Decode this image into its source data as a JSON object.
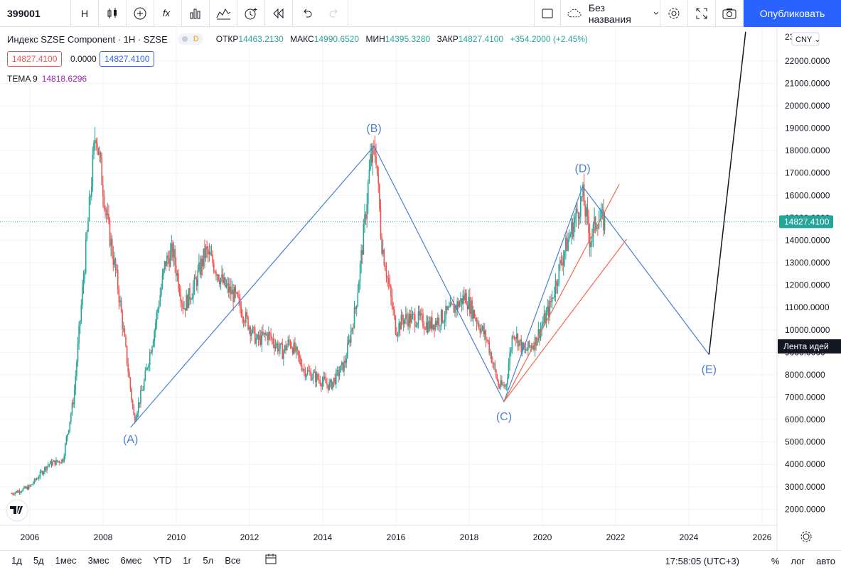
{
  "toolbar": {
    "symbol": "399001",
    "interval": "H",
    "icons": [
      "candles-icon",
      "add-indicator-icon",
      "fx-icon",
      "bars-chart-icon",
      "line-chart-icon",
      "alert-icon",
      "replay-icon",
      "undo-icon",
      "redo-icon"
    ],
    "layout_name": "Без названия",
    "publish_label": "Опубликовать"
  },
  "legend": {
    "title": "Индекс SZSE Component · 1H · SZSE",
    "badge": "D",
    "ohlc": [
      {
        "k": "ОТКР",
        "v": "14463.2130"
      },
      {
        "k": "МАКС",
        "v": "14990.6520"
      },
      {
        "k": "МИН",
        "v": "14395.3280"
      },
      {
        "k": "ЗАКР",
        "v": "14827.4100"
      },
      {
        "k": "",
        "v": "+354.2000 (+2.45%)"
      }
    ],
    "bid": "14827.4100",
    "spread": "0.0000",
    "ask": "14827.4100",
    "tema_label": "TEMA 9",
    "tema_value": "14818.6296"
  },
  "scale": {
    "currency": "CNY",
    "top_partial": "23",
    "current_price": "14827.4100",
    "ideas_label": "Лента идей"
  },
  "wave_labels": {
    "A": "(A)",
    "B": "(B)",
    "C": "(C)",
    "D": "(D)",
    "E": "(E)"
  },
  "colors": {
    "up": "#26a69a",
    "down": "#ef5350",
    "wave": "#4a7fd4",
    "trend": "#f4694d"
  },
  "chart_data": {
    "type": "line",
    "title": "Индекс SZSE Component · 1H · SZSE",
    "xlabel": "",
    "ylabel": "",
    "x_ticks": [
      "2006",
      "2008",
      "2010",
      "2012",
      "2014",
      "2016",
      "2018",
      "2020",
      "2022",
      "2024",
      "2026"
    ],
    "y_ticks": [
      "2000.0000",
      "3000.0000",
      "4000.0000",
      "5000.0000",
      "6000.0000",
      "7000.0000",
      "8000.0000",
      "9000.0000",
      "10000.0000",
      "11000.0000",
      "12000.0000",
      "13000.0000",
      "14000.0000",
      "15000.0000",
      "16000.0000",
      "17000.0000",
      "18000.0000",
      "19000.0000",
      "20000.0000",
      "21000.0000",
      "22000.0000"
    ],
    "ylim": [
      1300,
      23300
    ],
    "xlim": [
      2005.4,
      2026.3
    ],
    "series": [
      {
        "x": [
          2005.5,
          2006.0,
          2006.5,
          2006.9,
          2007.2,
          2007.5,
          2007.8,
          2008.1,
          2008.4,
          2008.7,
          2008.85,
          2009.1,
          2009.4,
          2009.7,
          2009.9,
          2010.2,
          2010.5,
          2010.8,
          2011.0,
          2011.3,
          2011.6,
          2011.9,
          2012.2,
          2012.5,
          2012.9,
          2013.1,
          2013.5,
          2013.9,
          2014.2,
          2014.6,
          2014.9,
          2015.1,
          2015.3,
          2015.45,
          2015.6,
          2015.8,
          2016.0,
          2016.2,
          2016.6,
          2016.9,
          2017.2,
          2017.6,
          2017.9,
          2018.1,
          2018.5,
          2018.8,
          2019.0,
          2019.2,
          2019.5,
          2019.8,
          2020.2,
          2020.5,
          2020.8,
          2021.1,
          2021.3,
          2021.5,
          2021.7
        ],
        "y": [
          2700,
          3000,
          4000,
          4200,
          7000,
          13000,
          19000,
          15000,
          12000,
          8000,
          6000,
          7500,
          10000,
          13000,
          13500,
          11000,
          12000,
          13500,
          13000,
          12000,
          11500,
          10500,
          9500,
          9800,
          9000,
          9500,
          8200,
          7800,
          7500,
          8500,
          11000,
          14000,
          17500,
          18000,
          14000,
          12000,
          10000,
          10500,
          10500,
          10200,
          10500,
          11000,
          11500,
          10800,
          9500,
          7500,
          7500,
          10000,
          9000,
          9500,
          11000,
          13000,
          14500,
          16000,
          14000,
          15000,
          14800
        ]
      }
    ],
    "waves": {
      "x": [
        2008.75,
        2015.4,
        2018.95,
        2021.1,
        2024.55
      ],
      "y": [
        5650,
        18200,
        6800,
        16400,
        8900
      ],
      "labels": [
        "(A)",
        "(B)",
        "(C)",
        "(D)",
        "(E)"
      ]
    },
    "trendlines": [
      {
        "x": [
          2018.95,
          2022.1
        ],
        "y": [
          6800,
          16500
        ]
      },
      {
        "x": [
          2018.95,
          2022.3
        ],
        "y": [
          6800,
          14050
        ]
      }
    ],
    "projection": {
      "x": [
        2024.55,
        2025.55
      ],
      "y": [
        8900,
        23300
      ]
    },
    "current_price": 14827.41
  },
  "bottom": {
    "ranges": [
      "1д",
      "5д",
      "1мес",
      "3мес",
      "6мес",
      "YTD",
      "1г",
      "5л",
      "Все"
    ],
    "clock": "17:58:05 (UTC+3)",
    "percent": "%",
    "log": "лог",
    "auto": "авто"
  }
}
